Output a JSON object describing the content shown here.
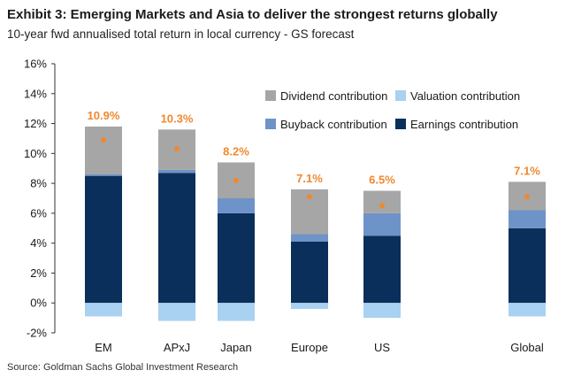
{
  "header": {
    "title": "Exhibit 3: Emerging Markets and Asia to deliver the strongest returns globally",
    "subtitle": "10-year fwd annualised total return in local currency - GS forecast"
  },
  "footer": {
    "source": "Source: Goldman Sachs Global Investment Research"
  },
  "colors": {
    "earnings": "#0b2f5b",
    "buyback": "#6e93c8",
    "dividend": "#a6a6a6",
    "valuation": "#a9d1f1",
    "total_marker": "#f0882f"
  },
  "chart_data": {
    "type": "bar",
    "stacked": true,
    "categories": [
      "EM",
      "APxJ",
      "Japan",
      "Europe",
      "US",
      "Global"
    ],
    "series": [
      {
        "name": "Earnings contribution",
        "key": "earnings",
        "values": [
          8.5,
          8.7,
          6.0,
          4.1,
          4.5,
          5.0
        ]
      },
      {
        "name": "Buyback contribution",
        "key": "buyback",
        "values": [
          0.1,
          0.2,
          1.0,
          0.5,
          1.5,
          1.2
        ]
      },
      {
        "name": "Valuation contribution",
        "key": "valuation",
        "values": [
          -0.9,
          -1.2,
          -1.2,
          -0.4,
          -1.0,
          -0.9
        ]
      },
      {
        "name": "Dividend contribution",
        "key": "dividend",
        "values": [
          3.2,
          2.7,
          2.4,
          3.0,
          1.5,
          1.9
        ]
      }
    ],
    "totals": [
      10.9,
      10.3,
      8.2,
      7.1,
      6.5,
      7.1
    ],
    "total_labels": [
      "10.9%",
      "10.3%",
      "8.2%",
      "7.1%",
      "6.5%",
      "7.1%"
    ],
    "ylim": [
      -2,
      16
    ],
    "yticks": [
      -2,
      0,
      2,
      4,
      6,
      8,
      10,
      12,
      14,
      16
    ],
    "ytick_labels": [
      "-2%",
      "0%",
      "2%",
      "4%",
      "6%",
      "8%",
      "10%",
      "12%",
      "14%",
      "16%"
    ],
    "legend": {
      "placement": "top-right",
      "items": [
        {
          "key": "dividend",
          "label": "Dividend contribution"
        },
        {
          "key": "valuation",
          "label": "Valuation contribution"
        },
        {
          "key": "buyback",
          "label": "Buyback contribution"
        },
        {
          "key": "earnings",
          "label": "Earnings contribution"
        }
      ]
    }
  }
}
